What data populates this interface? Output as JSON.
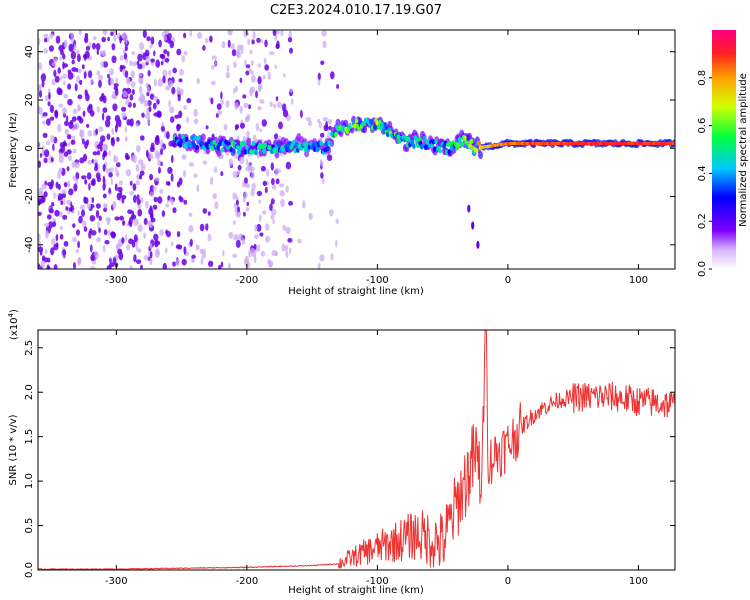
{
  "title": "C2E3.2024.010.17.19.G07",
  "colors": {
    "snr_line": "#ee3333",
    "noise_purple": "#6a00e8",
    "noise_light": "#c9a6f2"
  },
  "chart_data": [
    {
      "type": "heatmap",
      "name_hint": "spectrogram",
      "xlabel": "Height of straight line (km)",
      "ylabel": "Frequency (Hz)",
      "xlim": [
        -360,
        128
      ],
      "ylim": [
        -50,
        49
      ],
      "xticks": [
        -300,
        -200,
        -100,
        0,
        100
      ],
      "yticks": [
        -40,
        -20,
        0,
        20,
        40
      ],
      "xtick_labels": [
        "-300",
        "-200",
        "-100",
        "0",
        "100"
      ],
      "ytick_labels": [
        "-40",
        "-20",
        "0",
        "20",
        "40"
      ],
      "colorbar": {
        "label": "Normalized spectral amplitude",
        "range": [
          0,
          1
        ],
        "ticks": [
          0.0,
          0.2,
          0.4,
          0.6,
          0.8
        ],
        "tick_labels": [
          "0.0",
          "0.2",
          "0.4",
          "0.6",
          "0.8"
        ],
        "stops": [
          "#ffffff",
          "#b060ff",
          "#5000ff",
          "#0000ff",
          "#00ffff",
          "#00ff00",
          "#ffff00",
          "#ff0000",
          "#ff0080"
        ]
      },
      "signal_track": {
        "x": [
          -250,
          -200,
          -165,
          -140,
          -130,
          -115,
          -100,
          -80,
          -60,
          -45,
          -35,
          -25,
          0,
          50,
          100,
          128
        ],
        "freq": [
          3,
          0,
          1,
          0,
          8,
          10,
          10,
          3,
          2,
          0,
          3,
          0,
          2,
          2,
          2,
          2
        ],
        "amplitude": [
          0.45,
          0.5,
          0.45,
          0.4,
          0.55,
          0.6,
          0.6,
          0.5,
          0.45,
          0.5,
          0.55,
          0.7,
          0.85,
          0.9,
          0.9,
          0.9
        ]
      },
      "noise_region": {
        "x_start": -360,
        "x_end": -130,
        "amplitude": 0.25
      },
      "secondary_trace": {
        "x": [
          -30,
          -27,
          -23
        ],
        "freq": [
          -25,
          -32,
          -40
        ]
      }
    },
    {
      "type": "line",
      "name_hint": "snr",
      "xlabel": "Height of straight line (km)",
      "ylabel": "SNR (10 * v/v)",
      "exponent_label": "(x10",
      "exponent_power": "4",
      "exponent_close": ")",
      "xlim": [
        -360,
        128
      ],
      "ylim": [
        0,
        2.7
      ],
      "xticks": [
        -300,
        -200,
        -100,
        0,
        100
      ],
      "yticks": [
        0.0,
        0.5,
        1.0,
        1.5,
        2.0,
        2.5
      ],
      "xtick_labels": [
        "-300",
        "-200",
        "-100",
        "0",
        "100"
      ],
      "ytick_labels": [
        "0.0",
        "0.5",
        "1.0",
        "1.5",
        "2.0",
        "2.5"
      ],
      "x": [
        -360,
        -300,
        -250,
        -200,
        -150,
        -130,
        -110,
        -90,
        -70,
        -50,
        -40,
        -30,
        -25,
        -20,
        -17,
        -15,
        -10,
        0,
        10,
        20,
        30,
        40,
        60,
        80,
        100,
        120,
        128
      ],
      "y": [
        0.01,
        0.01,
        0.02,
        0.03,
        0.05,
        0.07,
        0.2,
        0.3,
        0.4,
        0.3,
        0.7,
        1.1,
        1.3,
        1.0,
        2.7,
        1.2,
        1.3,
        1.4,
        1.6,
        1.75,
        1.85,
        1.92,
        1.95,
        1.95,
        1.9,
        1.87,
        1.85
      ]
    }
  ]
}
